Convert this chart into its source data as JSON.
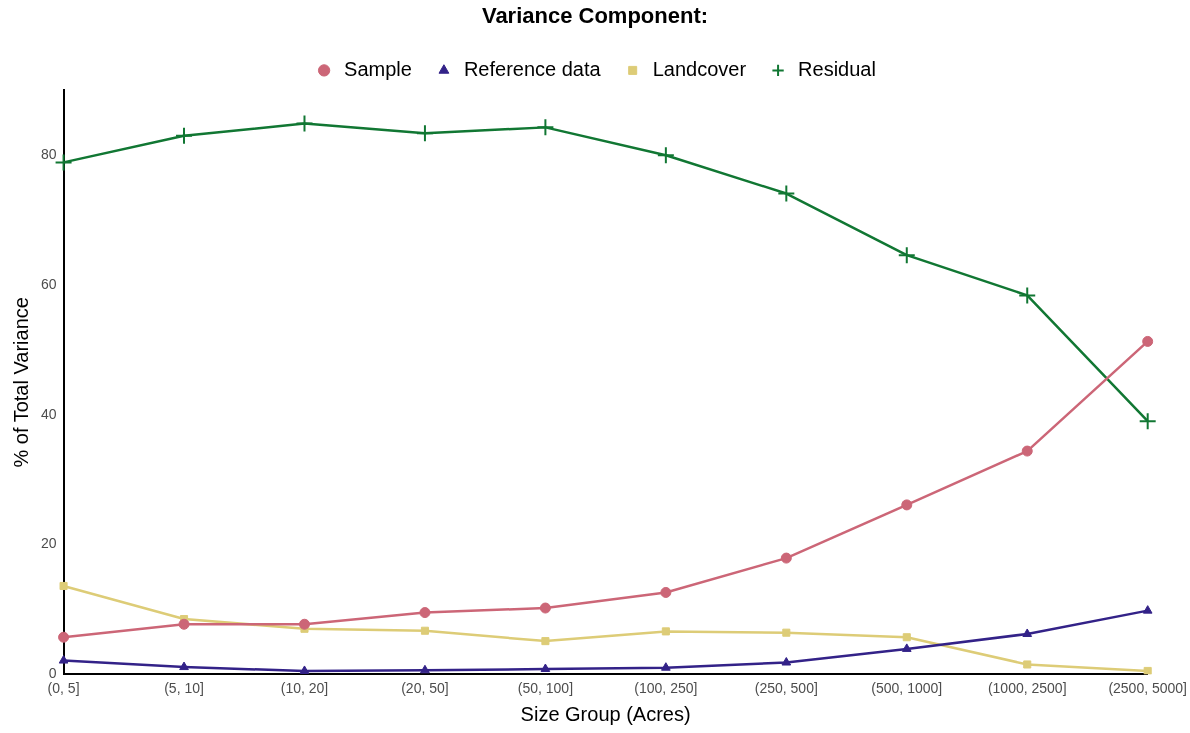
{
  "chart_data": {
    "type": "line",
    "legend_title": "Variance Component:",
    "xlabel": "Size Group (Acres)",
    "ylabel": "% of Total Variance",
    "categories": [
      "(0, 5]",
      "(5, 10]",
      "(10, 20]",
      "(20, 50]",
      "(50, 100]",
      "(100, 250]",
      "(250, 500]",
      "(500, 1000]",
      "(1000, 2500]",
      "(2500, 5000]"
    ],
    "series": [
      {
        "name": "Sample",
        "color": "#cc6677",
        "marker": "circle",
        "values": [
          5.7,
          7.7,
          7.7,
          9.5,
          10.2,
          12.6,
          17.9,
          26.1,
          34.4,
          51.3
        ]
      },
      {
        "name": "Reference data",
        "color": "#332288",
        "marker": "triangle",
        "values": [
          2.1,
          1.1,
          0.5,
          0.6,
          0.8,
          1.0,
          1.8,
          3.9,
          6.2,
          9.8
        ]
      },
      {
        "name": "Landcover",
        "color": "#ddcc77",
        "marker": "square",
        "values": [
          13.6,
          8.5,
          7.0,
          6.7,
          5.1,
          6.6,
          6.4,
          5.7,
          1.5,
          0.5
        ]
      },
      {
        "name": "Residual",
        "color": "#117733",
        "marker": "cross",
        "values": [
          78.9,
          83.0,
          84.9,
          83.4,
          84.3,
          80.0,
          74.1,
          64.6,
          58.4,
          39.0
        ]
      }
    ],
    "ylim": [
      0,
      90
    ],
    "yticks": [
      0,
      20,
      40,
      60,
      80
    ],
    "grid": false,
    "legend": "top",
    "line_style": "solid"
  }
}
